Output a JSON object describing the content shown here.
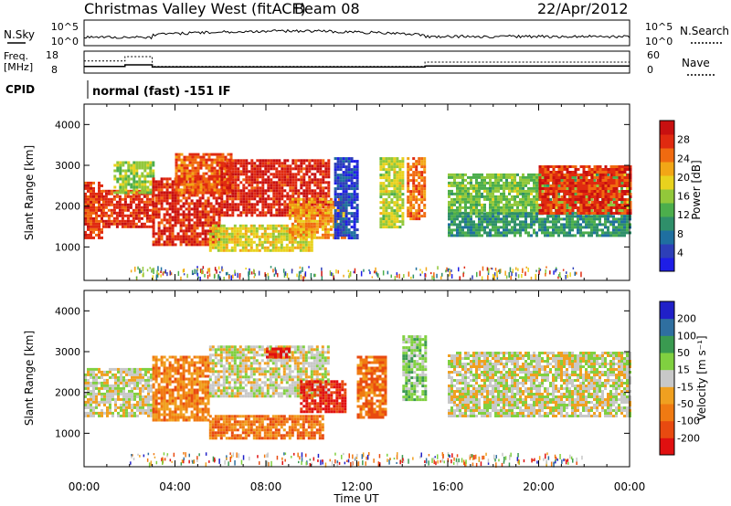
{
  "header": {
    "station": "Christmas Valley West (fitACF)",
    "beam": "Beam 08",
    "date": "22/Apr/2012"
  },
  "top_panels": {
    "nsky": {
      "label": "N.Sky",
      "ticks": [
        "10^5",
        "10^0"
      ],
      "right_label": "N.Search",
      "right_ticks": [
        "10^5",
        "10^0"
      ]
    },
    "freq": {
      "label_line1": "Freq.",
      "label_line2": "[MHz]",
      "ticks": [
        "18",
        "8"
      ],
      "right_label": "Nave",
      "right_ticks": [
        "60",
        "0"
      ],
      "freq_steps_utc": [
        [
          0.0,
          12
        ],
        [
          1.8,
          15
        ],
        [
          3.0,
          11
        ],
        [
          15.0,
          13
        ]
      ],
      "nave_steps_utc": [
        [
          0.0,
          22
        ],
        [
          1.8,
          30
        ],
        [
          3.0,
          12
        ],
        [
          15.0,
          20
        ]
      ]
    },
    "cpid": {
      "label": "CPID",
      "mode": "normal (fast) -151 IF"
    }
  },
  "chart_data": [
    {
      "type": "heatmap",
      "name": "power",
      "xlabel": "",
      "ylabel": "Slant Range [km]",
      "xlim_hours": [
        0,
        24
      ],
      "ylim_km": [
        180,
        4500
      ],
      "yticks": [
        1000,
        2000,
        3000,
        4000
      ],
      "colorbar": {
        "label": "Power [dB]",
        "ticks": [
          "4",
          "8",
          "12",
          "16",
          "20",
          "24",
          "28"
        ],
        "colors": [
          "#1e1ee6",
          "#2d3fb8",
          "#1f6fa0",
          "#2f8f6a",
          "#4cae4c",
          "#92c83a",
          "#e8d21e",
          "#f2a616",
          "#f06a10",
          "#e02a10",
          "#c81010"
        ]
      },
      "echo_regions": [
        {
          "t": [
            0.0,
            0.8
          ],
          "r": [
            1200,
            2600
          ],
          "v": 0.88
        },
        {
          "t": [
            0.8,
            3.0
          ],
          "r": [
            1500,
            2400
          ],
          "v": 0.9
        },
        {
          "t": [
            1.3,
            3.0
          ],
          "r": [
            2300,
            3100
          ],
          "v": 0.5
        },
        {
          "t": [
            3.0,
            6.0
          ],
          "r": [
            1050,
            2700
          ],
          "v": 0.92
        },
        {
          "t": [
            4.0,
            6.5
          ],
          "r": [
            2300,
            3300
          ],
          "v": 0.82
        },
        {
          "t": [
            6.0,
            10.8
          ],
          "r": [
            1800,
            3150
          ],
          "v": 0.94
        },
        {
          "t": [
            5.5,
            10.0
          ],
          "r": [
            900,
            1550
          ],
          "v": 0.6
        },
        {
          "t": [
            9.0,
            11.5
          ],
          "r": [
            1200,
            2200
          ],
          "v": 0.72
        },
        {
          "t": [
            11.0,
            12.0
          ],
          "r": [
            1200,
            3200
          ],
          "v": 0.1
        },
        {
          "t": [
            13.0,
            14.0
          ],
          "r": [
            1500,
            3200
          ],
          "v": 0.55
        },
        {
          "t": [
            14.2,
            15.0
          ],
          "r": [
            1700,
            3200
          ],
          "v": 0.8
        },
        {
          "t": [
            16.0,
            24.0
          ],
          "r": [
            1800,
            2800
          ],
          "v": 0.45
        },
        {
          "t": [
            16.0,
            24.0
          ],
          "r": [
            1250,
            1850
          ],
          "v": 0.32
        },
        {
          "t": [
            20.0,
            24.0
          ],
          "r": [
            1800,
            3000
          ],
          "v": 0.9
        }
      ]
    },
    {
      "type": "heatmap",
      "name": "velocity",
      "xlabel": "Time UT",
      "ylabel": "Slant Range [km]",
      "xlim_hours": [
        0,
        24
      ],
      "ylim_km": [
        180,
        4500
      ],
      "yticks": [
        1000,
        2000,
        3000,
        4000
      ],
      "xticks": [
        "00:00",
        "04:00",
        "08:00",
        "12:00",
        "16:00",
        "20:00",
        "00:00"
      ],
      "colorbar": {
        "label": "Velocity [m s⁻¹]",
        "ticks": [
          "-200",
          "-100",
          "-50",
          "-15",
          "15",
          "50",
          "100",
          "200"
        ],
        "colors": [
          "#e01010",
          "#e84a10",
          "#f07a12",
          "#f0a020",
          "#c8c8c8",
          "#80d040",
          "#3a9a50",
          "#2f6fa0",
          "#2020c8"
        ]
      },
      "echo_regions": [
        {
          "t": [
            0.0,
            3.0
          ],
          "r": [
            1450,
            2600
          ],
          "v": 0.5
        },
        {
          "t": [
            3.0,
            5.5
          ],
          "r": [
            1300,
            2900
          ],
          "v": 0.28
        },
        {
          "t": [
            5.5,
            10.8
          ],
          "r": [
            1900,
            3150
          ],
          "v": 0.5
        },
        {
          "t": [
            8.0,
            9.0
          ],
          "r": [
            2850,
            3100
          ],
          "v": 0.05
        },
        {
          "t": [
            5.5,
            10.5
          ],
          "r": [
            850,
            1450
          ],
          "v": 0.24
        },
        {
          "t": [
            9.5,
            11.5
          ],
          "r": [
            1500,
            2300
          ],
          "v": 0.06
        },
        {
          "t": [
            12.0,
            13.3
          ],
          "r": [
            1400,
            2900
          ],
          "v": 0.22
        },
        {
          "t": [
            14.0,
            15.0
          ],
          "r": [
            1800,
            3400
          ],
          "v": 0.62
        },
        {
          "t": [
            16.0,
            24.0
          ],
          "r": [
            1400,
            3000
          ],
          "v": 0.5
        }
      ]
    }
  ]
}
